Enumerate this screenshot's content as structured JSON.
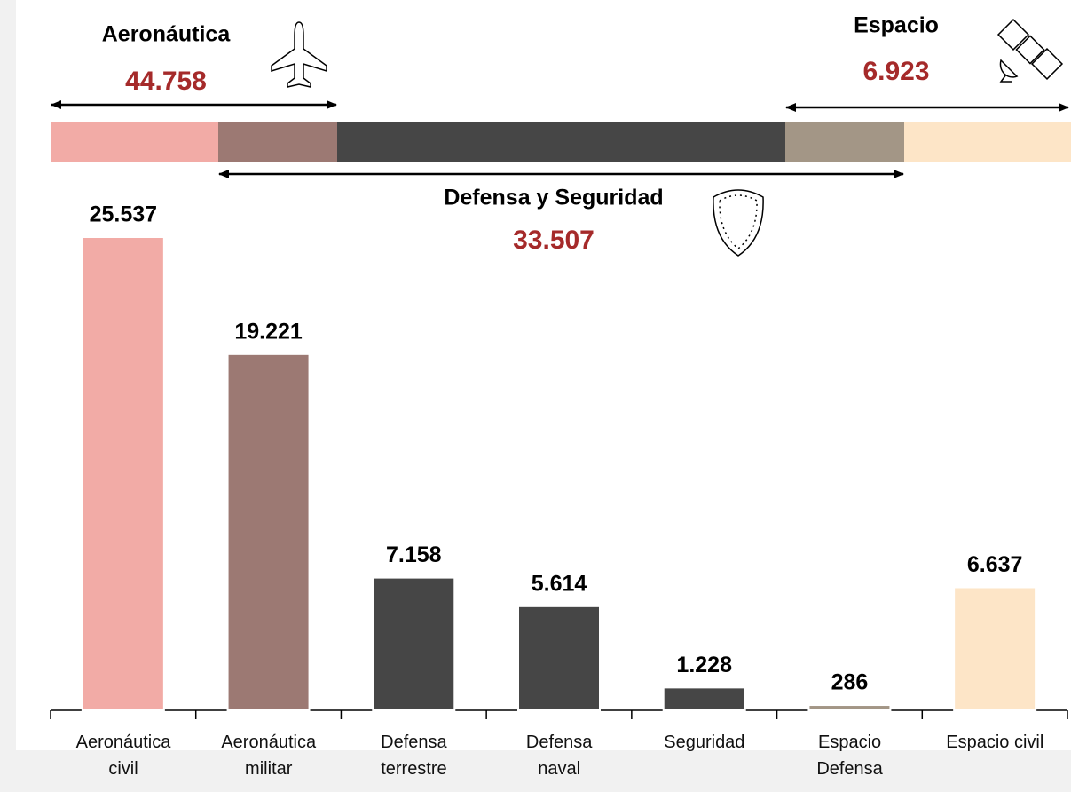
{
  "chart_data": {
    "type": "bar",
    "categories": [
      "Aeronáutica\ncivil",
      "Aeronáutica\nmilitar",
      "Defensa\nterrestre",
      "Defensa\nnaval",
      "Seguridad",
      "Espacio\nDefensa",
      "Espacio civil"
    ],
    "values": [
      25537,
      19221,
      7158,
      5614,
      1228,
      286,
      6637
    ],
    "value_labels": [
      "25.537",
      "19.221",
      "7.158",
      "5.614",
      "1.228",
      "286",
      "6.637"
    ],
    "colors": [
      "#f2aba6",
      "#9c7973",
      "#464646",
      "#464646",
      "#464646",
      "#a39686",
      "#fde5c7"
    ],
    "ylim": [
      0,
      30000
    ],
    "groups": [
      {
        "name": "Aeronáutica",
        "value": 44758,
        "value_label": "44.758"
      },
      {
        "name": "Defensa y Seguridad",
        "value": 33507,
        "value_label": "33.507"
      },
      {
        "name": "Espacio",
        "value": 6923,
        "value_label": "6.923"
      }
    ]
  }
}
